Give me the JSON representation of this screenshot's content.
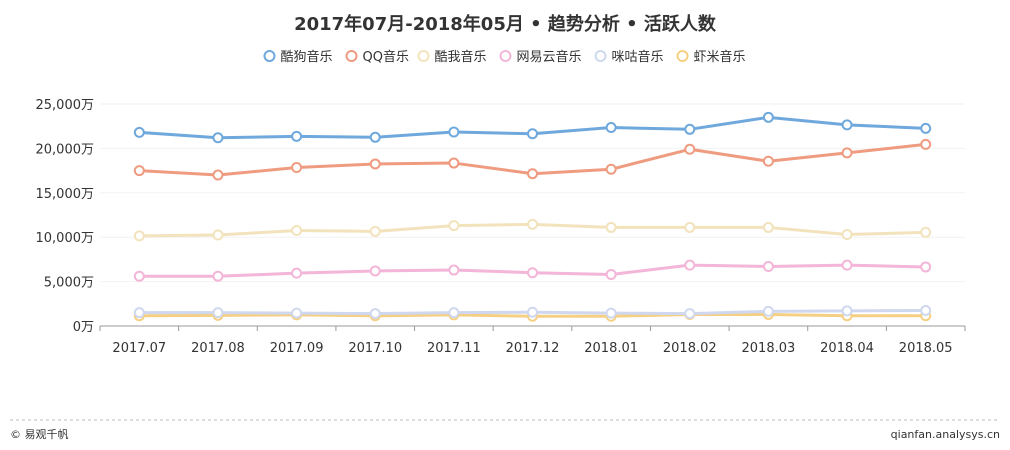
{
  "chart_data": {
    "type": "line",
    "title": "2017年07月-2018年05月 • 趋势分析 • 活跃人数",
    "xlabel": "",
    "ylabel": "",
    "y_unit": "万",
    "ylim": [
      0,
      25000
    ],
    "yticks": [
      "0万",
      "5,000万",
      "10,000万",
      "15,000万",
      "20,000万",
      "25,000万"
    ],
    "grid": true,
    "legend_position": "top",
    "categories": [
      "2017.07",
      "2017.08",
      "2017.09",
      "2017.10",
      "2017.11",
      "2017.12",
      "2018.01",
      "2018.02",
      "2018.03",
      "2018.04",
      "2018.05"
    ],
    "series": [
      {
        "name": "酷狗音乐",
        "color": "#6fa8dc",
        "values": [
          21800,
          21200,
          21350,
          21250,
          21850,
          21650,
          22350,
          22150,
          23500,
          22650,
          22250
        ]
      },
      {
        "name": "QQ音乐",
        "color": "#ee9b80",
        "values": [
          17500,
          17000,
          17850,
          18250,
          18350,
          17150,
          17650,
          19900,
          18550,
          19500,
          20450
        ]
      },
      {
        "name": "酷我音乐",
        "color": "#f2e3bd",
        "values": [
          10150,
          10250,
          10750,
          10650,
          11300,
          11450,
          11100,
          11100,
          11100,
          10300,
          10550
        ]
      },
      {
        "name": "网易云音乐",
        "color": "#f3b5d8",
        "values": [
          5600,
          5600,
          5950,
          6200,
          6300,
          6000,
          5800,
          6850,
          6700,
          6850,
          6650
        ]
      },
      {
        "name": "咪咕音乐",
        "color": "#cfd8ee",
        "values": [
          1500,
          1500,
          1450,
          1400,
          1500,
          1550,
          1450,
          1400,
          1650,
          1700,
          1750
        ]
      },
      {
        "name": "虾米音乐",
        "color": "#f5cf83",
        "values": [
          1150,
          1200,
          1250,
          1150,
          1250,
          1100,
          1100,
          1300,
          1300,
          1150,
          1150
        ]
      }
    ]
  },
  "footer": {
    "left": "© 易观千帆",
    "right": "qianfan.analysys.cn"
  }
}
